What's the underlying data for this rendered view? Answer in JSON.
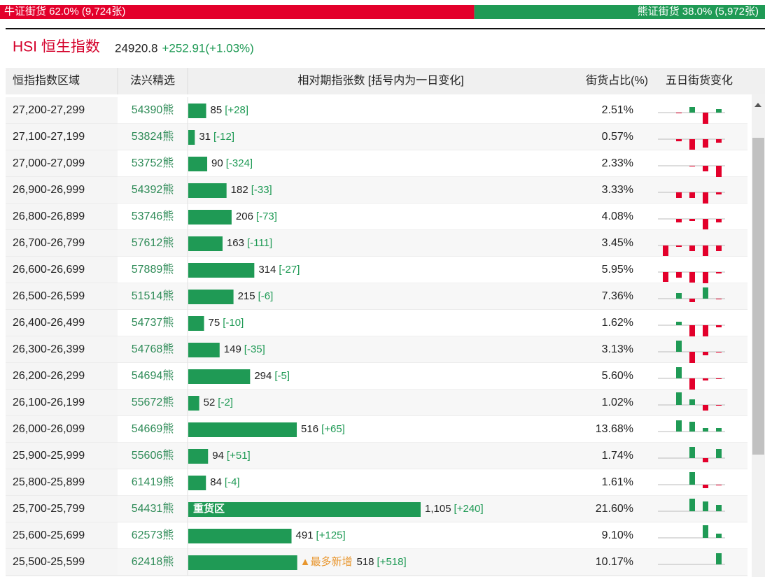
{
  "summary": {
    "bull": {
      "text": "牛证街货 62.0% (9,724张)",
      "pct": 62.0
    },
    "bear": {
      "text": "熊证街货 38.0% (5,972张)",
      "pct": 38.0
    }
  },
  "index": {
    "name": "HSI 恒生指数",
    "level": "24920.8",
    "change": "+252.91(+1.03%)"
  },
  "table": {
    "headers": [
      "恒指指数区域",
      "法兴精选",
      "相对期指张数 [括号内为一日变化]",
      "街货占比(%)",
      "五日街货变化"
    ],
    "count_max": 1105,
    "rows": [
      {
        "range": "27,200-27,299",
        "code": "54390熊",
        "count": 85,
        "change": "[+28]",
        "pct": "2.51%",
        "five_day": [
          0,
          -1,
          8,
          -18,
          5
        ]
      },
      {
        "range": "27,100-27,199",
        "code": "53824熊",
        "count": 31,
        "change": "[-12]",
        "pct": "0.57%",
        "five_day": [
          0,
          -3,
          -15,
          -12,
          -5
        ]
      },
      {
        "range": "27,000-27,099",
        "code": "53752熊",
        "count": 90,
        "change": "[-324]",
        "pct": "2.33%",
        "five_day": [
          0,
          0,
          -1,
          -8,
          -16
        ]
      },
      {
        "range": "26,900-26,999",
        "code": "54392熊",
        "count": 182,
        "change": "[-33]",
        "pct": "3.33%",
        "five_day": [
          0,
          -8,
          -8,
          -16,
          -3
        ]
      },
      {
        "range": "26,800-26,899",
        "code": "53746熊",
        "count": 206,
        "change": "[-73]",
        "pct": "4.08%",
        "five_day": [
          0,
          -5,
          -3,
          -15,
          -5
        ]
      },
      {
        "range": "26,700-26,799",
        "code": "57612熊",
        "count": 163,
        "change": "[-111]",
        "pct": "3.45%",
        "five_day": [
          -15,
          -2,
          -8,
          -15,
          -8
        ]
      },
      {
        "range": "26,600-26,699",
        "code": "57889熊",
        "count": 314,
        "change": "[-27]",
        "pct": "5.95%",
        "five_day": [
          -14,
          -8,
          -15,
          -18,
          -2
        ]
      },
      {
        "range": "26,500-26,599",
        "code": "51514熊",
        "count": 215,
        "change": "[-6]",
        "pct": "7.36%",
        "five_day": [
          0,
          8,
          -5,
          16,
          -1
        ]
      },
      {
        "range": "26,400-26,499",
        "code": "54737熊",
        "count": 75,
        "change": "[-10]",
        "pct": "1.62%",
        "five_day": [
          0,
          5,
          -16,
          -16,
          -3
        ]
      },
      {
        "range": "26,300-26,399",
        "code": "54768熊",
        "count": 149,
        "change": "[-35]",
        "pct": "3.13%",
        "five_day": [
          0,
          16,
          -16,
          -5,
          -1
        ]
      },
      {
        "range": "26,200-26,299",
        "code": "54694熊",
        "count": 294,
        "change": "[-5]",
        "pct": "5.60%",
        "five_day": [
          0,
          16,
          -16,
          -3,
          -1
        ]
      },
      {
        "range": "26,100-26,199",
        "code": "55672熊",
        "count": 52,
        "change": "[-2]",
        "pct": "1.02%",
        "five_day": [
          0,
          18,
          8,
          -8,
          -1
        ]
      },
      {
        "range": "26,000-26,099",
        "code": "54669熊",
        "count": 516,
        "change": "[+65]",
        "pct": "13.68%",
        "five_day": [
          0,
          16,
          14,
          5,
          5
        ]
      },
      {
        "range": "25,900-25,999",
        "code": "55606熊",
        "count": 94,
        "change": "[+51]",
        "pct": "1.74%",
        "five_day": [
          0,
          0,
          16,
          -6,
          13
        ]
      },
      {
        "range": "25,800-25,899",
        "code": "61419熊",
        "count": 84,
        "change": "[-4]",
        "pct": "1.61%",
        "five_day": [
          0,
          0,
          18,
          -5,
          -1
        ]
      },
      {
        "range": "25,700-25,799",
        "code": "54431熊",
        "count": 1105,
        "count_label": "1,105",
        "change": "[+240]",
        "pct": "21.60%",
        "five_day": [
          0,
          0,
          18,
          14,
          9
        ],
        "bar_label": "重货区"
      },
      {
        "range": "25,600-25,699",
        "code": "62573熊",
        "count": 491,
        "change": "[+125]",
        "pct": "9.10%",
        "five_day": [
          0,
          0,
          0,
          18,
          6
        ]
      },
      {
        "range": "25,500-25,599",
        "code": "62418熊",
        "count": 518,
        "change": "[+518]",
        "pct": "10.17%",
        "five_day": [
          0,
          0,
          0,
          0,
          16
        ],
        "note": "▲最多新增"
      }
    ]
  }
}
